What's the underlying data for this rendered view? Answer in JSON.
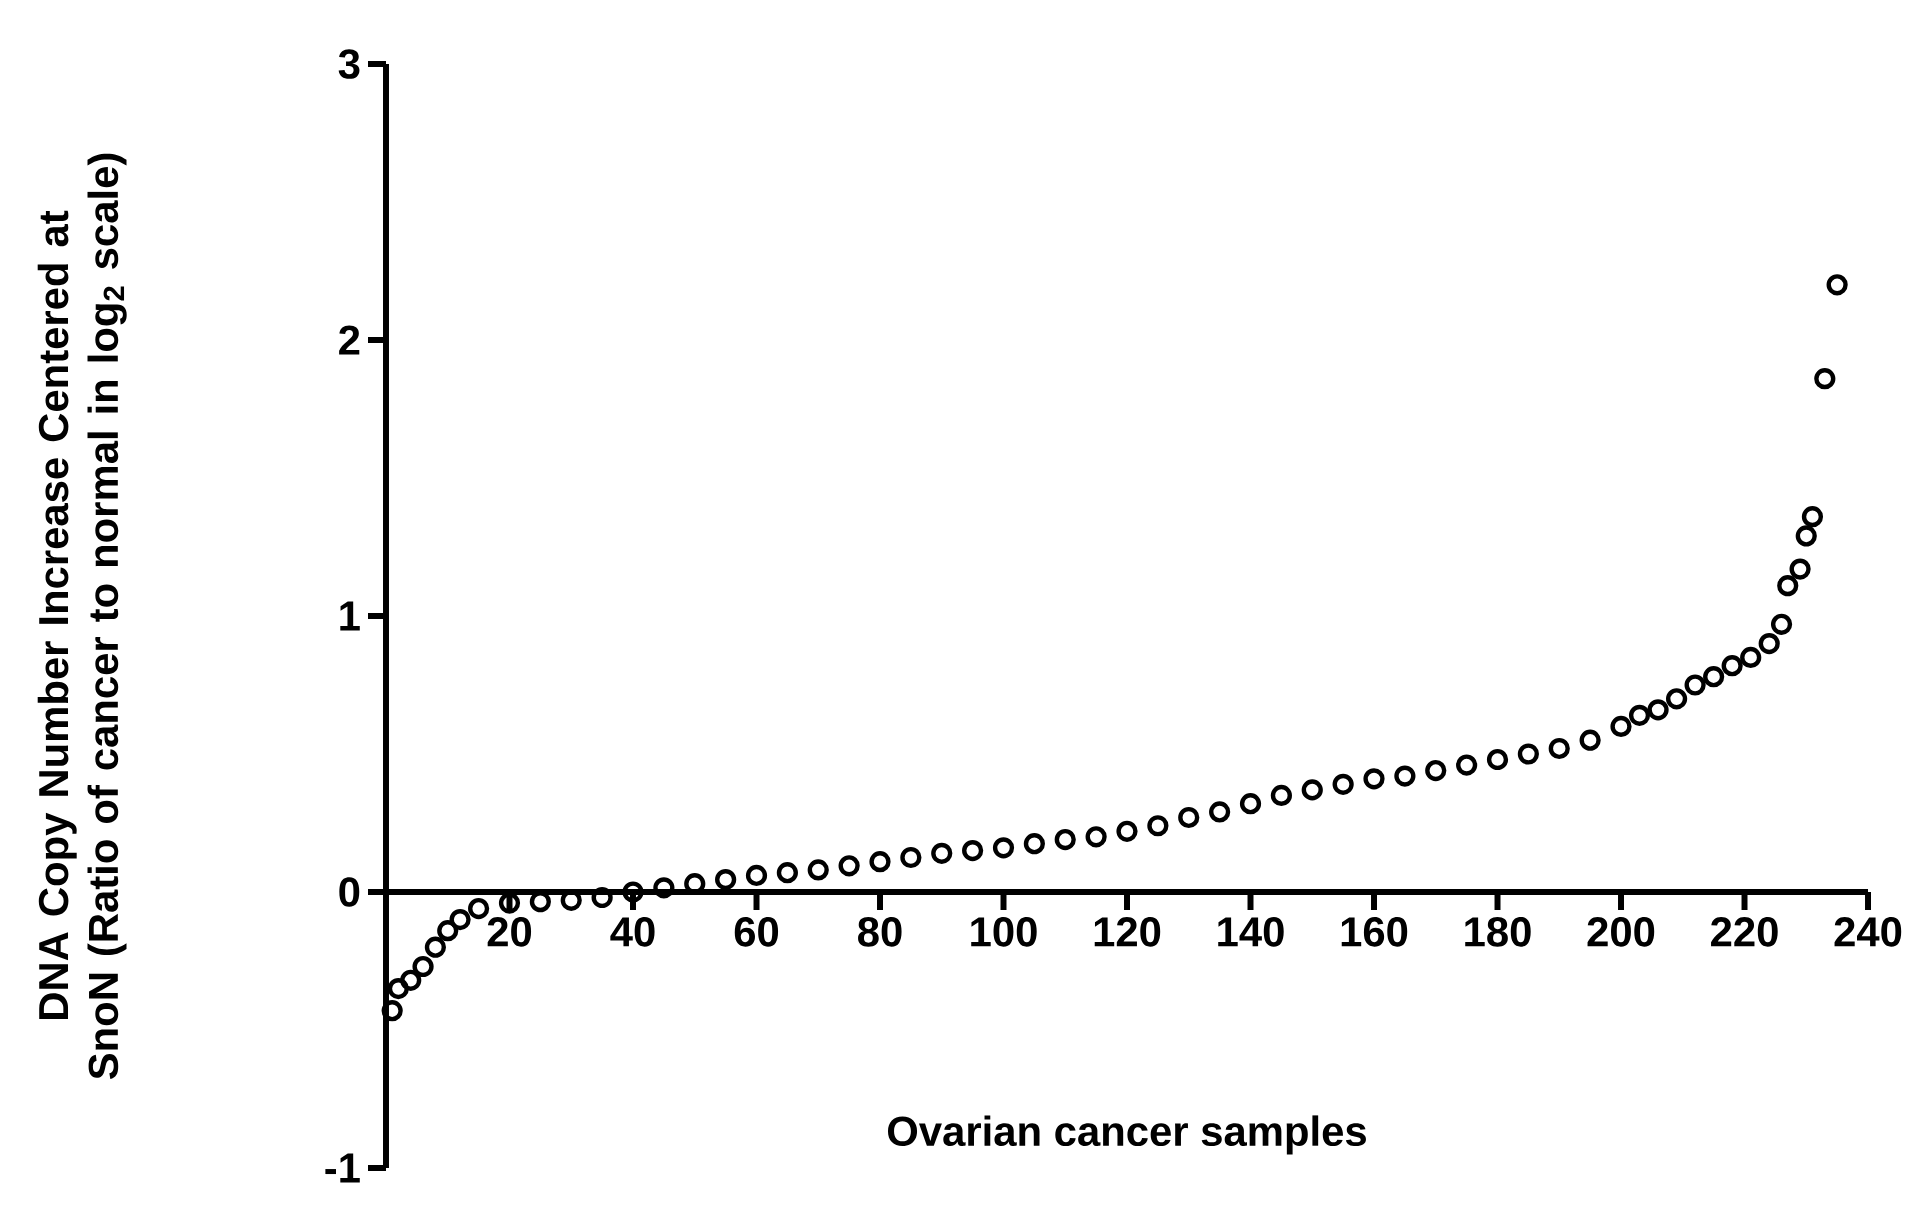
{
  "chart_data": {
    "type": "scatter",
    "xlabel": "Ovarian cancer samples",
    "ylabel": "DNA Copy Number Increase Centered at SnoN (Ratio of cancer to normal in log$_{2}$ scale)",
    "xlim": [
      0,
      240
    ],
    "ylim": [
      -1,
      3
    ],
    "xticks": [
      {
        "value": 0,
        "label": null
      },
      20,
      40,
      60,
      80,
      100,
      120,
      140,
      160,
      180,
      200,
      220,
      240
    ],
    "yticks": [
      -1,
      0,
      1,
      2,
      3
    ],
    "marker": "circle",
    "grid": false,
    "series": [
      {
        "color": "#000000",
        "x": [
          1,
          2,
          4,
          6,
          8,
          10,
          12,
          15,
          20,
          25,
          30,
          35,
          40,
          45,
          50,
          55,
          60,
          65,
          70,
          75,
          80,
          85,
          90,
          95,
          100,
          105,
          110,
          115,
          120,
          125,
          130,
          135,
          140,
          145,
          150,
          155,
          160,
          165,
          170,
          175,
          180,
          185,
          190,
          195,
          200,
          203,
          206,
          209,
          212,
          215,
          218,
          221,
          224,
          226,
          227,
          229,
          230,
          231,
          233,
          235
        ],
        "values": [
          -0.43,
          -0.35,
          -0.32,
          -0.27,
          -0.2,
          -0.14,
          -0.1,
          -0.06,
          -0.04,
          -0.035,
          -0.03,
          -0.02,
          0.0,
          0.015,
          0.03,
          0.045,
          0.06,
          0.07,
          0.08,
          0.095,
          0.11,
          0.125,
          0.14,
          0.15,
          0.16,
          0.175,
          0.19,
          0.2,
          0.22,
          0.24,
          0.27,
          0.29,
          0.32,
          0.35,
          0.37,
          0.39,
          0.41,
          0.42,
          0.44,
          0.46,
          0.48,
          0.5,
          0.52,
          0.55,
          0.6,
          0.64,
          0.66,
          0.7,
          0.75,
          0.78,
          0.82,
          0.85,
          0.9,
          0.97,
          1.11,
          1.17,
          1.29,
          1.36,
          1.86,
          2.2
        ]
      }
    ]
  }
}
